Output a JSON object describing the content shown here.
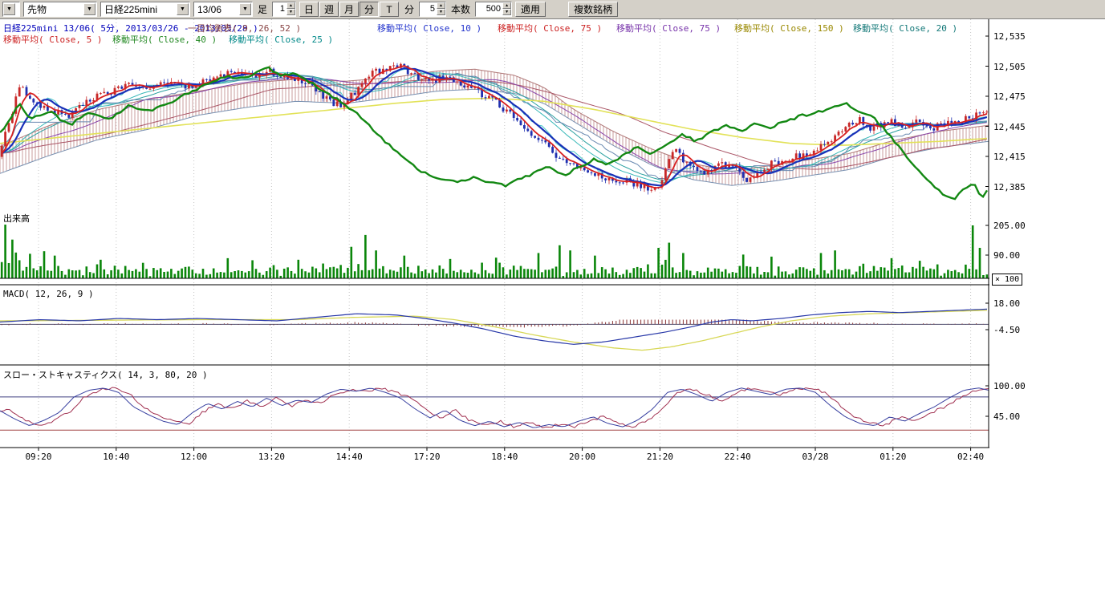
{
  "icons": {
    "chevron_down": "▼",
    "spin_up": "▲",
    "spin_down": "▼"
  },
  "toolbar": {
    "instrument_type": "先物",
    "symbol": "日経225mini",
    "contract_month": "13/06",
    "bar_label": "足",
    "bar_value": "1",
    "period_buttons": [
      {
        "label": "日",
        "active": false
      },
      {
        "label": "週",
        "active": false
      },
      {
        "label": "月",
        "active": false
      },
      {
        "label": "分",
        "active": true
      },
      {
        "label": "T",
        "active": false
      }
    ],
    "minute_label": "分",
    "minute_value": "5",
    "count_label": "本数",
    "count_value": "500",
    "apply_button": "適用",
    "multi_symbol_button": "複数銘柄"
  },
  "price_pane": {
    "header_row1": [
      {
        "label": "日経225mini 13/06( 5分, 2013/03/26 - 2013/03/28 )",
        "color": "#0000bb"
      },
      {
        "label": "一目均衡表( 9, 26, 52 )",
        "color": "#884444"
      },
      {
        "label": "移動平均( Close, 10 )",
        "color": "#2233cc"
      },
      {
        "label": "移動平均( Close, 75 )",
        "color": "#cc2222"
      },
      {
        "label": "移動平均( Close, 75 )",
        "color": "#7733aa"
      },
      {
        "label": "移動平均( Close, 150 )",
        "color": "#998800"
      },
      {
        "label": "移動平均( Close, 20 )",
        "color": "#117777"
      }
    ],
    "header_row2": [
      {
        "label": "移動平均( Close, 5 )",
        "color": "#cc2222"
      },
      {
        "label": "移動平均( Close, 40 )",
        "color": "#228822"
      },
      {
        "label": "移動平均( Close, 25 )",
        "color": "#008888"
      }
    ],
    "y_labels": [
      "12,535",
      "12,505",
      "12,475",
      "12,445",
      "12,415",
      "12,385"
    ]
  },
  "volume_pane": {
    "label": "出来高",
    "y_labels": [
      "205.00",
      "90.00"
    ],
    "multiplier": "× 100"
  },
  "macd_pane": {
    "label": "MACD( 12, 26, 9 )",
    "y_labels": [
      "18.00",
      "-4.50"
    ]
  },
  "stoch_pane": {
    "label": "スロー・ストキャスティクス( 14, 3, 80, 20 )",
    "y_labels": [
      "100.00",
      "45.00"
    ]
  },
  "x_axis": {
    "labels": [
      "09:20",
      "10:40",
      "12:00",
      "13:20",
      "14:40",
      "17:20",
      "18:40",
      "20:00",
      "21:20",
      "22:40",
      "03/28",
      "01:20",
      "02:40"
    ]
  },
  "chart_data": {
    "type": "candlestick",
    "instrument": "日経225mini 13/06",
    "interval": "5分",
    "date_range": "2013/03/26 - 2013/03/28",
    "price_axis_ticks": [
      12535,
      12505,
      12475,
      12445,
      12415,
      12385
    ],
    "volume_axis_ticks": [
      205,
      90
    ],
    "macd_axis_ticks": [
      18,
      -4.5
    ],
    "stoch_axis_ticks": [
      100,
      45
    ],
    "stoch_ref_lines": [
      80,
      20
    ],
    "price_keypoints": [
      [
        0,
        12418
      ],
      [
        0.01,
        12452
      ],
      [
        0.02,
        12488
      ],
      [
        0.035,
        12468
      ],
      [
        0.05,
        12462
      ],
      [
        0.07,
        12455
      ],
      [
        0.09,
        12472
      ],
      [
        0.11,
        12478
      ],
      [
        0.13,
        12488
      ],
      [
        0.15,
        12480
      ],
      [
        0.17,
        12490
      ],
      [
        0.19,
        12485
      ],
      [
        0.21,
        12492
      ],
      [
        0.23,
        12498
      ],
      [
        0.25,
        12494
      ],
      [
        0.27,
        12500
      ],
      [
        0.29,
        12495
      ],
      [
        0.31,
        12490
      ],
      [
        0.33,
        12472
      ],
      [
        0.345,
        12465
      ],
      [
        0.36,
        12480
      ],
      [
        0.375,
        12498
      ],
      [
        0.39,
        12502
      ],
      [
        0.405,
        12505
      ],
      [
        0.42,
        12496
      ],
      [
        0.435,
        12490
      ],
      [
        0.45,
        12494
      ],
      [
        0.465,
        12488
      ],
      [
        0.48,
        12482
      ],
      [
        0.5,
        12470
      ],
      [
        0.515,
        12458
      ],
      [
        0.53,
        12445
      ],
      [
        0.545,
        12432
      ],
      [
        0.56,
        12418
      ],
      [
        0.575,
        12408
      ],
      [
        0.59,
        12400
      ],
      [
        0.605,
        12396
      ],
      [
        0.62,
        12392
      ],
      [
        0.635,
        12390
      ],
      [
        0.65,
        12386
      ],
      [
        0.66,
        12380
      ],
      [
        0.668,
        12384
      ],
      [
        0.676,
        12408
      ],
      [
        0.684,
        12425
      ],
      [
        0.692,
        12410
      ],
      [
        0.7,
        12402
      ],
      [
        0.715,
        12398
      ],
      [
        0.73,
        12408
      ],
      [
        0.745,
        12404
      ],
      [
        0.755,
        12392
      ],
      [
        0.765,
        12398
      ],
      [
        0.78,
        12408
      ],
      [
        0.795,
        12412
      ],
      [
        0.81,
        12416
      ],
      [
        0.825,
        12420
      ],
      [
        0.84,
        12432
      ],
      [
        0.855,
        12444
      ],
      [
        0.87,
        12452
      ],
      [
        0.88,
        12442
      ],
      [
        0.89,
        12446
      ],
      [
        0.9,
        12450
      ],
      [
        0.915,
        12446
      ],
      [
        0.93,
        12450
      ],
      [
        0.945,
        12444
      ],
      [
        0.96,
        12448
      ],
      [
        0.975,
        12452
      ],
      [
        0.99,
        12456
      ],
      [
        1,
        12458
      ]
    ],
    "green_line_keypoints": [
      [
        0,
        12438
      ],
      [
        0.02,
        12468
      ],
      [
        0.03,
        12452
      ],
      [
        0.05,
        12460
      ],
      [
        0.07,
        12446
      ],
      [
        0.09,
        12458
      ],
      [
        0.11,
        12452
      ],
      [
        0.13,
        12465
      ],
      [
        0.15,
        12460
      ],
      [
        0.17,
        12468
      ],
      [
        0.19,
        12478
      ],
      [
        0.21,
        12488
      ],
      [
        0.23,
        12495
      ],
      [
        0.25,
        12492
      ],
      [
        0.27,
        12505
      ],
      [
        0.285,
        12495
      ],
      [
        0.3,
        12498
      ],
      [
        0.315,
        12488
      ],
      [
        0.33,
        12478
      ],
      [
        0.345,
        12470
      ],
      [
        0.36,
        12458
      ],
      [
        0.375,
        12444
      ],
      [
        0.39,
        12430
      ],
      [
        0.405,
        12416
      ],
      [
        0.42,
        12404
      ],
      [
        0.435,
        12396
      ],
      [
        0.45,
        12392
      ],
      [
        0.465,
        12390
      ],
      [
        0.48,
        12394
      ],
      [
        0.495,
        12390
      ],
      [
        0.51,
        12386
      ],
      [
        0.525,
        12392
      ],
      [
        0.54,
        12398
      ],
      [
        0.555,
        12404
      ],
      [
        0.57,
        12396
      ],
      [
        0.585,
        12404
      ],
      [
        0.6,
        12412
      ],
      [
        0.615,
        12406
      ],
      [
        0.63,
        12416
      ],
      [
        0.645,
        12424
      ],
      [
        0.66,
        12418
      ],
      [
        0.675,
        12428
      ],
      [
        0.69,
        12436
      ],
      [
        0.705,
        12430
      ],
      [
        0.72,
        12440
      ],
      [
        0.735,
        12446
      ],
      [
        0.75,
        12440
      ],
      [
        0.765,
        12448
      ],
      [
        0.78,
        12444
      ],
      [
        0.8,
        12452
      ],
      [
        0.82,
        12458
      ],
      [
        0.84,
        12462
      ],
      [
        0.855,
        12468
      ],
      [
        0.87,
        12460
      ],
      [
        0.885,
        12452
      ],
      [
        0.9,
        12436
      ],
      [
        0.915,
        12418
      ],
      [
        0.93,
        12400
      ],
      [
        0.945,
        12386
      ],
      [
        0.955,
        12376
      ],
      [
        0.965,
        12372
      ],
      [
        0.975,
        12382
      ],
      [
        0.985,
        12390
      ],
      [
        0.993,
        12372
      ],
      [
        1,
        12382
      ]
    ],
    "span_a_keypoints": [
      [
        0,
        12425
      ],
      [
        0.05,
        12446
      ],
      [
        0.1,
        12462
      ],
      [
        0.15,
        12472
      ],
      [
        0.2,
        12480
      ],
      [
        0.25,
        12488
      ],
      [
        0.3,
        12492
      ],
      [
        0.35,
        12490
      ],
      [
        0.4,
        12494
      ],
      [
        0.44,
        12500
      ],
      [
        0.48,
        12502
      ],
      [
        0.52,
        12496
      ],
      [
        0.55,
        12484
      ],
      [
        0.58,
        12462
      ],
      [
        0.62,
        12440
      ],
      [
        0.66,
        12422
      ],
      [
        0.7,
        12408
      ],
      [
        0.74,
        12400
      ],
      [
        0.78,
        12406
      ],
      [
        0.82,
        12412
      ],
      [
        0.86,
        12418
      ],
      [
        0.9,
        12430
      ],
      [
        0.95,
        12440
      ],
      [
        1,
        12446
      ]
    ],
    "span_b_keypoints": [
      [
        0,
        12398
      ],
      [
        0.05,
        12416
      ],
      [
        0.1,
        12432
      ],
      [
        0.15,
        12442
      ],
      [
        0.2,
        12456
      ],
      [
        0.25,
        12464
      ],
      [
        0.3,
        12470
      ],
      [
        0.35,
        12468
      ],
      [
        0.4,
        12474
      ],
      [
        0.44,
        12480
      ],
      [
        0.48,
        12482
      ],
      [
        0.52,
        12478
      ],
      [
        0.55,
        12468
      ],
      [
        0.58,
        12450
      ],
      [
        0.62,
        12426
      ],
      [
        0.66,
        12406
      ],
      [
        0.7,
        12392
      ],
      [
        0.74,
        12386
      ],
      [
        0.78,
        12390
      ],
      [
        0.82,
        12396
      ],
      [
        0.86,
        12402
      ],
      [
        0.9,
        12414
      ],
      [
        0.95,
        12424
      ],
      [
        1,
        12430
      ]
    ],
    "ma150_keypoints": [
      [
        0,
        12428
      ],
      [
        0.1,
        12438
      ],
      [
        0.2,
        12448
      ],
      [
        0.3,
        12458
      ],
      [
        0.4,
        12468
      ],
      [
        0.45,
        12472
      ],
      [
        0.5,
        12473
      ],
      [
        0.55,
        12470
      ],
      [
        0.6,
        12462
      ],
      [
        0.65,
        12452
      ],
      [
        0.7,
        12442
      ],
      [
        0.75,
        12434
      ],
      [
        0.8,
        12428
      ],
      [
        0.85,
        12426
      ],
      [
        0.9,
        12428
      ],
      [
        0.95,
        12430
      ],
      [
        1,
        12433
      ]
    ],
    "macd_keypoints": [
      [
        0,
        2
      ],
      [
        0.04,
        4
      ],
      [
        0.08,
        3
      ],
      [
        0.12,
        5
      ],
      [
        0.16,
        4
      ],
      [
        0.2,
        5
      ],
      [
        0.24,
        4
      ],
      [
        0.28,
        3
      ],
      [
        0.32,
        6
      ],
      [
        0.36,
        9
      ],
      [
        0.4,
        8
      ],
      [
        0.43,
        5
      ],
      [
        0.46,
        1
      ],
      [
        0.49,
        -4
      ],
      [
        0.52,
        -10
      ],
      [
        0.55,
        -14
      ],
      [
        0.58,
        -17
      ],
      [
        0.61,
        -15
      ],
      [
        0.64,
        -11
      ],
      [
        0.67,
        -7
      ],
      [
        0.7,
        -2
      ],
      [
        0.72,
        2
      ],
      [
        0.74,
        4
      ],
      [
        0.76,
        3
      ],
      [
        0.79,
        5
      ],
      [
        0.82,
        8
      ],
      [
        0.85,
        10
      ],
      [
        0.88,
        11
      ],
      [
        0.91,
        10
      ],
      [
        0.94,
        11
      ],
      [
        0.97,
        12
      ],
      [
        1,
        13
      ]
    ],
    "macd_signal_keypoints": [
      [
        0,
        3
      ],
      [
        0.1,
        3.5
      ],
      [
        0.2,
        4
      ],
      [
        0.3,
        4
      ],
      [
        0.36,
        6
      ],
      [
        0.42,
        7
      ],
      [
        0.46,
        4
      ],
      [
        0.5,
        -2
      ],
      [
        0.54,
        -9
      ],
      [
        0.58,
        -15
      ],
      [
        0.62,
        -20
      ],
      [
        0.65,
        -22
      ],
      [
        0.68,
        -19
      ],
      [
        0.71,
        -14
      ],
      [
        0.74,
        -8
      ],
      [
        0.77,
        -2
      ],
      [
        0.8,
        3
      ],
      [
        0.84,
        7
      ],
      [
        0.88,
        9
      ],
      [
        0.92,
        10
      ],
      [
        0.96,
        11
      ],
      [
        1,
        12
      ]
    ],
    "stoch_keypoints": [
      [
        0,
        55
      ],
      [
        0.015,
        40
      ],
      [
        0.03,
        28
      ],
      [
        0.045,
        38
      ],
      [
        0.06,
        52
      ],
      [
        0.075,
        80
      ],
      [
        0.09,
        92
      ],
      [
        0.105,
        96
      ],
      [
        0.12,
        88
      ],
      [
        0.135,
        62
      ],
      [
        0.15,
        48
      ],
      [
        0.165,
        36
      ],
      [
        0.18,
        30
      ],
      [
        0.195,
        52
      ],
      [
        0.21,
        68
      ],
      [
        0.225,
        58
      ],
      [
        0.24,
        72
      ],
      [
        0.255,
        62
      ],
      [
        0.27,
        78
      ],
      [
        0.285,
        64
      ],
      [
        0.3,
        74
      ],
      [
        0.315,
        70
      ],
      [
        0.33,
        85
      ],
      [
        0.345,
        94
      ],
      [
        0.36,
        90
      ],
      [
        0.375,
        96
      ],
      [
        0.39,
        88
      ],
      [
        0.405,
        78
      ],
      [
        0.42,
        58
      ],
      [
        0.435,
        42
      ],
      [
        0.45,
        56
      ],
      [
        0.465,
        38
      ],
      [
        0.48,
        28
      ],
      [
        0.495,
        36
      ],
      [
        0.51,
        26
      ],
      [
        0.525,
        34
      ],
      [
        0.54,
        24
      ],
      [
        0.555,
        30
      ],
      [
        0.57,
        26
      ],
      [
        0.585,
        36
      ],
      [
        0.6,
        44
      ],
      [
        0.615,
        32
      ],
      [
        0.63,
        26
      ],
      [
        0.645,
        38
      ],
      [
        0.66,
        58
      ],
      [
        0.675,
        88
      ],
      [
        0.69,
        94
      ],
      [
        0.705,
        84
      ],
      [
        0.72,
        72
      ],
      [
        0.735,
        88
      ],
      [
        0.75,
        96
      ],
      [
        0.765,
        90
      ],
      [
        0.78,
        84
      ],
      [
        0.795,
        94
      ],
      [
        0.81,
        96
      ],
      [
        0.825,
        88
      ],
      [
        0.84,
        64
      ],
      [
        0.855,
        44
      ],
      [
        0.87,
        32
      ],
      [
        0.885,
        28
      ],
      [
        0.9,
        44
      ],
      [
        0.915,
        36
      ],
      [
        0.93,
        50
      ],
      [
        0.945,
        62
      ],
      [
        0.96,
        78
      ],
      [
        0.975,
        92
      ],
      [
        0.99,
        96
      ],
      [
        1,
        92
      ]
    ],
    "volume_spikes": [
      [
        0.004,
        208
      ],
      [
        0.012,
        150
      ],
      [
        0.02,
        70
      ],
      [
        0.03,
        95
      ],
      [
        0.045,
        105
      ],
      [
        0.055,
        88
      ],
      [
        0.1,
        72
      ],
      [
        0.145,
        60
      ],
      [
        0.23,
        78
      ],
      [
        0.255,
        70
      ],
      [
        0.3,
        72
      ],
      [
        0.355,
        122
      ],
      [
        0.368,
        168
      ],
      [
        0.382,
        108
      ],
      [
        0.41,
        88
      ],
      [
        0.455,
        75
      ],
      [
        0.5,
        80
      ],
      [
        0.545,
        98
      ],
      [
        0.565,
        128
      ],
      [
        0.578,
        108
      ],
      [
        0.6,
        88
      ],
      [
        0.665,
        118
      ],
      [
        0.675,
        138
      ],
      [
        0.69,
        98
      ],
      [
        0.75,
        92
      ],
      [
        0.78,
        84
      ],
      [
        0.83,
        98
      ],
      [
        0.845,
        108
      ],
      [
        0.9,
        78
      ],
      [
        0.93,
        68
      ],
      [
        0.985,
        205
      ],
      [
        0.992,
        118
      ]
    ]
  }
}
